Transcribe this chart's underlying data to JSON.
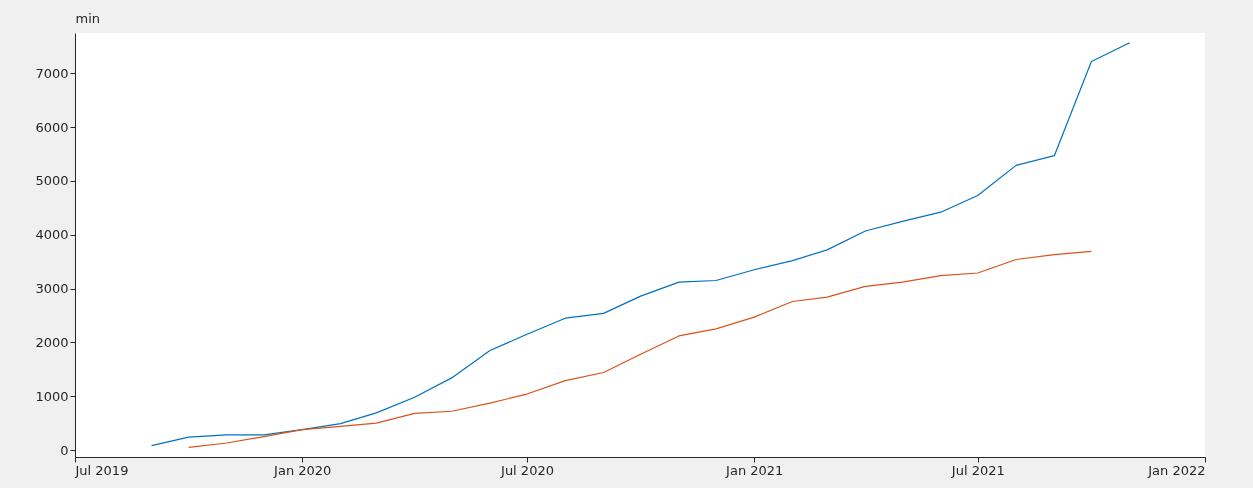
{
  "chart_data": {
    "type": "line",
    "ylabel": "min",
    "x": [
      "2019-09",
      "2019-10",
      "2019-11",
      "2019-12",
      "2020-01",
      "2020-02",
      "2020-03",
      "2020-04",
      "2020-05",
      "2020-06",
      "2020-07",
      "2020-08",
      "2020-09",
      "2020-10",
      "2020-11",
      "2020-12",
      "2021-01",
      "2021-02",
      "2021-03",
      "2021-04",
      "2021-05",
      "2021-06",
      "2021-07",
      "2021-08",
      "2021-09",
      "2021-10",
      "2021-11"
    ],
    "series": [
      {
        "color": "#0072bd",
        "values": [
          80,
          240,
          280,
          280,
          380,
          490,
          690,
          980,
          1340,
          1850,
          2150,
          2450,
          2540,
          2860,
          3120,
          3150,
          3350,
          3520,
          3720,
          4070,
          4250,
          4420,
          4730,
          5290,
          5470,
          7220,
          7570
        ]
      },
      {
        "color": "#d95319",
        "values": [
          null,
          50,
          130,
          250,
          380,
          440,
          500,
          680,
          720,
          870,
          1040,
          1290,
          1440,
          1780,
          2120,
          2250,
          2470,
          2760,
          2840,
          3040,
          3120,
          3240,
          3290,
          3540,
          3630,
          3690,
          null
        ]
      }
    ],
    "xlim": [
      "2019-07",
      "2022-01"
    ],
    "xticks": [
      {
        "value": "2019-07",
        "label": "Jul 2019"
      },
      {
        "value": "2020-01",
        "label": "Jan 2020"
      },
      {
        "value": "2020-07",
        "label": "Jul 2020"
      },
      {
        "value": "2021-01",
        "label": "Jan 2021"
      },
      {
        "value": "2021-07",
        "label": "Jul 2021"
      },
      {
        "value": "2022-01",
        "label": "Jan 2022"
      }
    ],
    "ylim": [
      -130,
      7750
    ],
    "yticks": [
      0,
      1000,
      2000,
      3000,
      4000,
      5000,
      6000,
      7000
    ],
    "grid": false,
    "marker": "none",
    "line_style": "solid"
  }
}
